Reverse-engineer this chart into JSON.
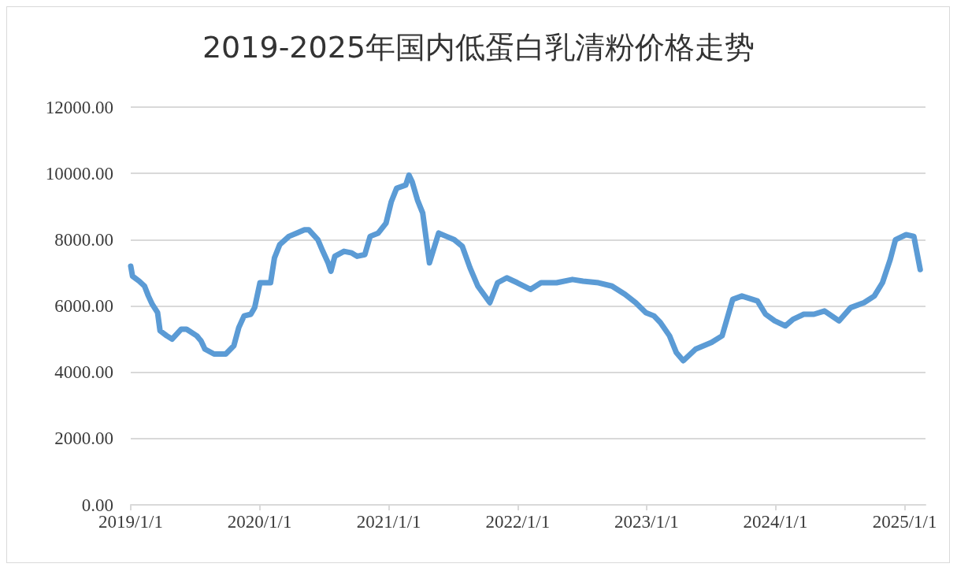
{
  "chart_data": {
    "type": "line",
    "title": "2019-2025年国内低蛋白乳清粉价格走势",
    "x": [
      "2019-01-01",
      "2019-01-06",
      "2019-01-25",
      "2019-02-09",
      "2019-02-20",
      "2019-03-03",
      "2019-03-18",
      "2019-03-25",
      "2019-04-13",
      "2019-04-28",
      "2019-05-24",
      "2019-06-08",
      "2019-07-07",
      "2019-07-19",
      "2019-07-30",
      "2019-08-25",
      "2019-09-27",
      "2019-10-20",
      "2019-11-03",
      "2019-11-18",
      "2019-12-07",
      "2019-12-18",
      "2020-01-02",
      "2020-02-01",
      "2020-02-12",
      "2020-02-27",
      "2020-03-24",
      "2020-04-15",
      "2020-05-07",
      "2020-05-19",
      "2020-06-14",
      "2020-06-28",
      "2020-07-13",
      "2020-07-21",
      "2020-08-01",
      "2020-08-27",
      "2020-09-18",
      "2020-10-03",
      "2020-10-25",
      "2020-11-09",
      "2020-12-02",
      "2020-12-24",
      "2021-01-08",
      "2021-01-23",
      "2021-02-18",
      "2021-02-27",
      "2021-03-08",
      "2021-03-23",
      "2021-04-07",
      "2021-04-26",
      "2021-05-22",
      "2021-06-13",
      "2021-07-05",
      "2021-07-28",
      "2021-08-19",
      "2021-09-10",
      "2021-10-14",
      "2021-11-05",
      "2021-12-01",
      "2021-12-31",
      "2022-02-06",
      "2022-03-08",
      "2022-04-21",
      "2022-06-05",
      "2022-07-05",
      "2022-08-18",
      "2022-09-25",
      "2022-11-01",
      "2022-12-01",
      "2022-12-30",
      "2023-01-22",
      "2023-02-09",
      "2023-03-07",
      "2023-03-26",
      "2023-04-15",
      "2023-05-20",
      "2023-07-04",
      "2023-08-03",
      "2023-09-02",
      "2023-09-28",
      "2023-11-11",
      "2023-12-04",
      "2023-12-30",
      "2024-01-29",
      "2024-02-20",
      "2024-03-21",
      "2024-04-19",
      "2024-05-19",
      "2024-06-29",
      "2024-08-01",
      "2024-09-08",
      "2024-10-07",
      "2024-10-30",
      "2024-11-21",
      "2024-12-06",
      "2025-01-05",
      "2025-01-27",
      "2025-02-14"
    ],
    "values": [
      7200,
      6900,
      6750,
      6600,
      6300,
      6050,
      5800,
      5250,
      5100,
      5000,
      5300,
      5300,
      5100,
      4950,
      4700,
      4550,
      4550,
      4800,
      5350,
      5700,
      5750,
      5950,
      6700,
      6700,
      7450,
      7850,
      8100,
      8200,
      8300,
      8300,
      8000,
      7650,
      7300,
      7050,
      7500,
      7650,
      7600,
      7500,
      7550,
      8100,
      8200,
      8500,
      9150,
      9550,
      9650,
      9950,
      9750,
      9200,
      8800,
      7300,
      8200,
      8100,
      8000,
      7800,
      7150,
      6600,
      6100,
      6700,
      6850,
      6700,
      6500,
      6700,
      6700,
      6800,
      6750,
      6700,
      6600,
      6350,
      6100,
      5800,
      5700,
      5500,
      5100,
      4600,
      4350,
      4700,
      4900,
      5100,
      6200,
      6300,
      6150,
      5750,
      5550,
      5400,
      5600,
      5750,
      5750,
      5850,
      5550,
      5950,
      6100,
      6300,
      6700,
      7400,
      8000,
      8150,
      8100,
      7100
    ],
    "color": "#5b9bd5",
    "marker": "none",
    "line_style": "solid",
    "grid": "y",
    "xlim": [
      "2019-01-01",
      "2025-03-01"
    ],
    "xticks": [
      {
        "value": "2019-01-01",
        "label": "2019/1/1"
      },
      {
        "value": "2020-01-01",
        "label": "2020/1/1"
      },
      {
        "value": "2021-01-01",
        "label": "2021/1/1"
      },
      {
        "value": "2022-01-01",
        "label": "2022/1/1"
      },
      {
        "value": "2023-01-01",
        "label": "2023/1/1"
      },
      {
        "value": "2024-01-01",
        "label": "2024/1/1"
      },
      {
        "value": "2025-01-01",
        "label": "2025/1/1"
      }
    ],
    "ylim": [
      0,
      12000
    ],
    "yticks": [
      {
        "value": 0,
        "label": "0.00"
      },
      {
        "value": 2000,
        "label": "2000.00"
      },
      {
        "value": 4000,
        "label": "4000.00"
      },
      {
        "value": 6000,
        "label": "6000.00"
      },
      {
        "value": 8000,
        "label": "8000.00"
      },
      {
        "value": 10000,
        "label": "10000.00"
      },
      {
        "value": 12000,
        "label": "12000.00"
      }
    ]
  }
}
